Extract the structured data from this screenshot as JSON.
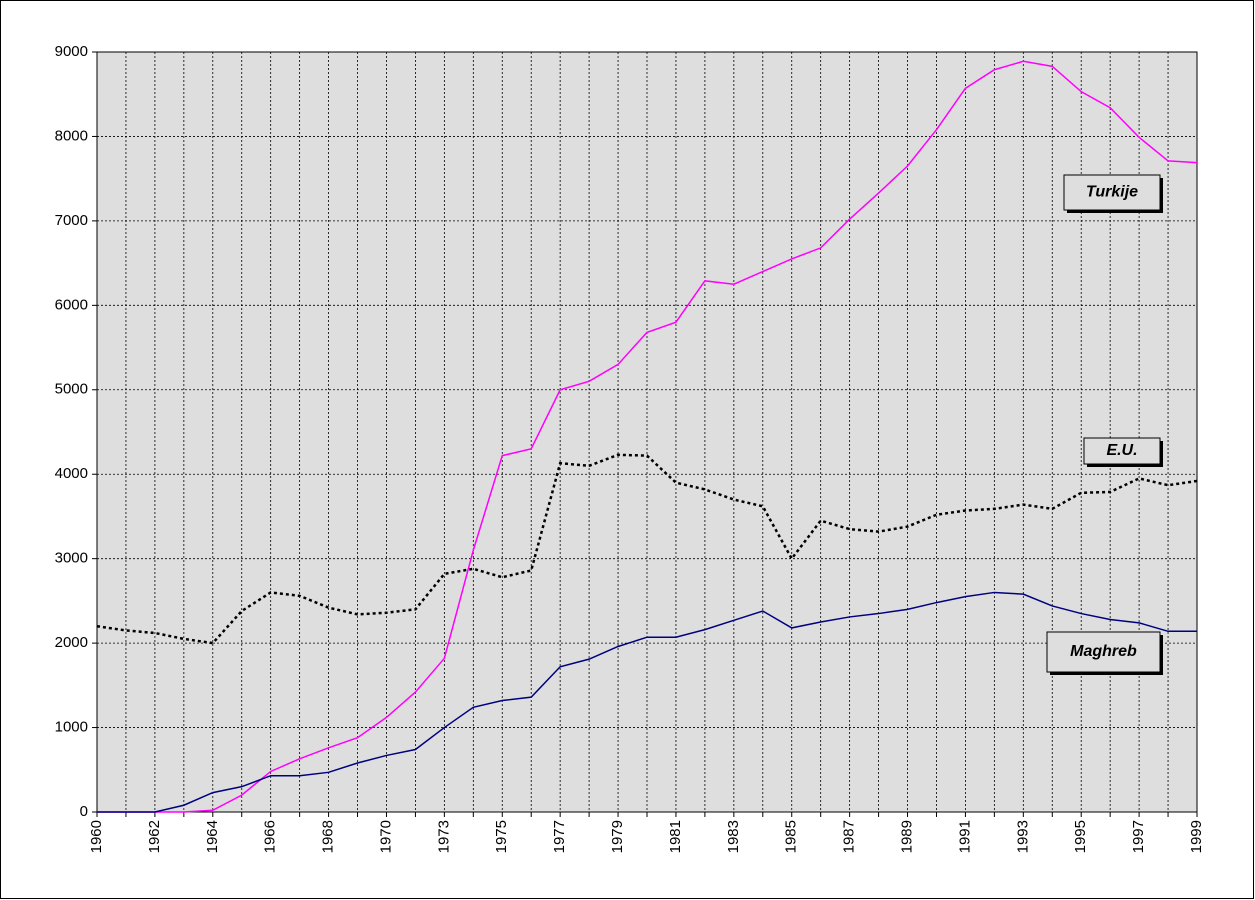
{
  "chart_data": {
    "type": "line",
    "categories": [
      "1960",
      null,
      "1962",
      null,
      "1964",
      null,
      "1966",
      null,
      "1968",
      null,
      "1970",
      null,
      "1973",
      null,
      "1975",
      null,
      "1977",
      null,
      "1979",
      null,
      "1981",
      null,
      "1983",
      null,
      "1985",
      null,
      "1987",
      null,
      "1989",
      null,
      "1991",
      null,
      "1993",
      null,
      "1995",
      null,
      "1997",
      null,
      "1999"
    ],
    "series": [
      {
        "name": "Turkije",
        "color": "#ff00ff",
        "style": "solid",
        "values": [
          0,
          0,
          0,
          0,
          20,
          200,
          480,
          630,
          760,
          880,
          1120,
          1420,
          1820,
          3100,
          4220,
          4300,
          5000,
          5100,
          5300,
          5680,
          5800,
          6290,
          6250,
          6400,
          6550,
          6680,
          7020,
          7330,
          7650,
          8080,
          8570,
          8790,
          8890,
          8830,
          8530,
          8340,
          7990,
          7710,
          7690
        ]
      },
      {
        "name": "E.U.",
        "color": "#000000",
        "style": "dotted",
        "values": [
          2200,
          2150,
          2120,
          2050,
          2000,
          2380,
          2600,
          2560,
          2420,
          2340,
          2360,
          2400,
          2820,
          2880,
          2780,
          2860,
          4130,
          4100,
          4230,
          4220,
          3900,
          3820,
          3700,
          3620,
          3000,
          3450,
          3350,
          3320,
          3380,
          3520,
          3570,
          3590,
          3640,
          3590,
          3780,
          3790,
          3950,
          3870,
          3920
        ]
      },
      {
        "name": "Maghreb",
        "color": "#000080",
        "style": "solid",
        "values": [
          0,
          0,
          0,
          80,
          230,
          300,
          430,
          430,
          470,
          580,
          670,
          740,
          1000,
          1240,
          1320,
          1360,
          1720,
          1810,
          1960,
          2070,
          2070,
          2160,
          2270,
          2380,
          2180,
          2250,
          2310,
          2350,
          2400,
          2480,
          2550,
          2600,
          2580,
          2440,
          2350,
          2280,
          2240,
          2140,
          2140
        ]
      }
    ],
    "ylim": [
      0,
      9000
    ],
    "yticks": [
      0,
      1000,
      2000,
      3000,
      4000,
      5000,
      6000,
      7000,
      8000,
      9000
    ],
    "grid": true
  }
}
